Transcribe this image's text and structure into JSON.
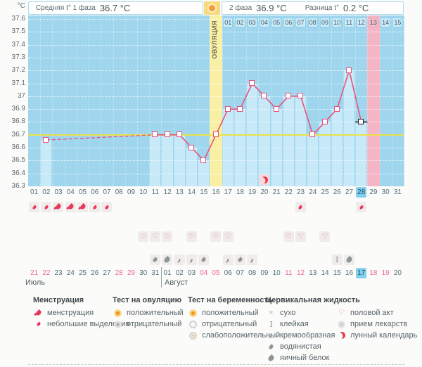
{
  "header": {
    "unit_label": "°C",
    "phase1_label": "Средняя t° 1 фаза",
    "phase1_value": "36.7 °C",
    "phase2_label": "2 фаза",
    "phase2_value": "36.9 °C",
    "diff_label": "Разница t°",
    "diff_value": "0.2 °C",
    "ovulation_label": "ОВУЛЯЦИЯ"
  },
  "chart_data": {
    "type": "line",
    "series_name": "Базальная температура",
    "ylabel": "°C",
    "ylim": [
      36.3,
      37.6
    ],
    "ytick_step": 0.1,
    "yticks": [
      "37.6",
      "37.5",
      "37.4",
      "37.3",
      "37.2",
      "37.1",
      "37",
      "36.9",
      "36.8",
      "36.7",
      "36.6",
      "36.5",
      "36.4",
      "36.3"
    ],
    "cycle_length_shown": 31,
    "cycle_day_labels": [
      "01",
      "02",
      "03",
      "04",
      "05",
      "06",
      "07",
      "08",
      "09",
      "10",
      "11",
      "12",
      "13",
      "14",
      "15",
      "16",
      "17",
      "18",
      "19",
      "20",
      "21",
      "22",
      "23",
      "24",
      "25",
      "26",
      "27",
      "28",
      "29",
      "30",
      "31"
    ],
    "dpo_labels": [
      "01",
      "02",
      "03",
      "04",
      "05",
      "06",
      "07",
      "08",
      "09",
      "10",
      "11",
      "12",
      "13",
      "14",
      "15"
    ],
    "ovulation_day": 16,
    "expected_period_day": 29,
    "expected_period_dpo": 13,
    "today_day": 28,
    "coverline_value": 36.7,
    "dashed_segment_days": [
      2,
      11
    ],
    "temps": [
      {
        "day": 2,
        "t": 36.66
      },
      {
        "day": 11,
        "t": 36.7
      },
      {
        "day": 12,
        "t": 36.7
      },
      {
        "day": 13,
        "t": 36.7
      },
      {
        "day": 14,
        "t": 36.6
      },
      {
        "day": 15,
        "t": 36.5
      },
      {
        "day": 16,
        "t": 36.7
      },
      {
        "day": 17,
        "t": 36.9
      },
      {
        "day": 18,
        "t": 36.9
      },
      {
        "day": 19,
        "t": 37.1
      },
      {
        "day": 20,
        "t": 37.0
      },
      {
        "day": 21,
        "t": 36.9
      },
      {
        "day": 22,
        "t": 37.0
      },
      {
        "day": 23,
        "t": 37.0
      },
      {
        "day": 24,
        "t": 36.7
      },
      {
        "day": 25,
        "t": 36.8
      },
      {
        "day": 26,
        "t": 36.9
      },
      {
        "day": 27,
        "t": 37.2
      },
      {
        "day": 28,
        "t": 36.8
      }
    ],
    "moon_marker": {
      "day": 20,
      "type": "лунный календарь"
    }
  },
  "events": {
    "menstruation": [
      {
        "day": 1,
        "type": "небольшие выделения"
      },
      {
        "day": 2,
        "type": "небольшие выделения"
      },
      {
        "day": 3,
        "type": "менструация"
      },
      {
        "day": 4,
        "type": "менструация"
      },
      {
        "day": 5,
        "type": "менструация"
      },
      {
        "day": 6,
        "type": "небольшие выделения"
      },
      {
        "day": 7,
        "type": "небольшие выделения"
      },
      {
        "day": 23,
        "type": "небольшие выделения"
      },
      {
        "day": 28,
        "type": "небольшие выделения"
      }
    ],
    "intercourse_days": [
      10,
      11,
      12,
      14,
      16,
      17,
      22,
      23,
      25
    ],
    "cervical_fluid": [
      {
        "day": 11,
        "type": "водянистая"
      },
      {
        "day": 12,
        "type": "яичный белок"
      },
      {
        "day": 13,
        "type": "кремообразная"
      },
      {
        "day": 14,
        "type": "кремообразная"
      },
      {
        "day": 15,
        "type": "водянистая"
      },
      {
        "day": 17,
        "type": "кремообразная"
      },
      {
        "day": 18,
        "type": "водянистая"
      },
      {
        "day": 19,
        "type": "кремообразная"
      },
      {
        "day": 26,
        "type": "клейкая"
      },
      {
        "day": 27,
        "type": "яичный белок"
      }
    ]
  },
  "calendar": {
    "july_label": "Июль",
    "august_label": "Август",
    "dates": [
      {
        "label": "21",
        "weekend": true
      },
      {
        "label": "22",
        "weekend": true
      },
      {
        "label": "23"
      },
      {
        "label": "24"
      },
      {
        "label": "25"
      },
      {
        "label": "26"
      },
      {
        "label": "27"
      },
      {
        "label": "28",
        "weekend": true
      },
      {
        "label": "29",
        "weekend": true
      },
      {
        "label": "30"
      },
      {
        "label": "31"
      },
      {
        "label": "01"
      },
      {
        "label": "02"
      },
      {
        "label": "03"
      },
      {
        "label": "04",
        "weekend": true
      },
      {
        "label": "05",
        "weekend": true
      },
      {
        "label": "06"
      },
      {
        "label": "07"
      },
      {
        "label": "08"
      },
      {
        "label": "09"
      },
      {
        "label": "10"
      },
      {
        "label": "11",
        "weekend": true
      },
      {
        "label": "12",
        "weekend": true
      },
      {
        "label": "13"
      },
      {
        "label": "14"
      },
      {
        "label": "15"
      },
      {
        "label": "16"
      },
      {
        "label": "17",
        "today": true
      },
      {
        "label": "18",
        "weekend": true
      },
      {
        "label": "19",
        "weekend": true
      },
      {
        "label": "20"
      }
    ]
  },
  "legend": {
    "groups": [
      {
        "title": "Менструация",
        "items": [
          {
            "icon": "menstruation-drop-icon",
            "label": "менструация"
          },
          {
            "icon": "spotting-drop-icon",
            "label": "небольшие выделения"
          }
        ]
      },
      {
        "title": "Тест на овуляцию",
        "items": [
          {
            "icon": "ovulation-test-positive-icon",
            "label": "положительный"
          },
          {
            "icon": "ovulation-test-negative-icon",
            "label": "отрицательный"
          }
        ]
      },
      {
        "title": "Тест на беременность",
        "items": [
          {
            "icon": "pregnancy-test-positive-icon",
            "label": "положительный"
          },
          {
            "icon": "pregnancy-test-negative-icon",
            "label": "отрицательный"
          },
          {
            "icon": "pregnancy-test-weak-positive-icon",
            "label": "слабоположительный"
          }
        ]
      },
      {
        "title": "Цервикальная жидкость",
        "items": [
          {
            "icon": "dry-icon",
            "label": "сухо"
          },
          {
            "icon": "sticky-icon",
            "label": "клейкая"
          },
          {
            "icon": "creamy-icon",
            "label": "кремообразная"
          },
          {
            "icon": "watery-icon",
            "label": "водянистая"
          },
          {
            "icon": "eggwhite-icon",
            "label": "яичный белок"
          }
        ]
      },
      {
        "title": "",
        "items": [
          {
            "icon": "intercourse-heart-icon",
            "label": "половой акт"
          },
          {
            "icon": "medication-icon",
            "label": "прием лекарств"
          },
          {
            "icon": "lunar-calendar-icon",
            "label": "лунный календарь"
          }
        ]
      }
    ]
  },
  "colors": {
    "chart_background": "#9fd6ee",
    "recorded_fill": "#c7e9f8",
    "ovulation_column": "#f9f0a6",
    "expected_period_column": "#f4b5c7",
    "coverline": "#ece23f",
    "temperature_line": "#e8537c",
    "today_highlight": "#83cfee",
    "weekend_text": "#ef6a93",
    "menstruation_red": "#e8365a",
    "cervical_gray": "#8d9695",
    "moon_red": "#e8364f",
    "test_positive_orange": "#f6b23e"
  }
}
